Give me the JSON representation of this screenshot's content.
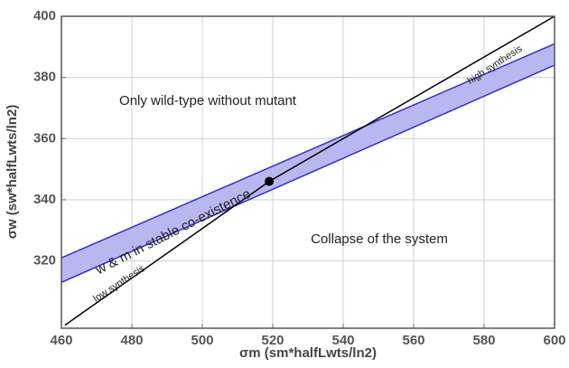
{
  "chart_data": {
    "type": "line",
    "x_label": "σm (sm*halfLwts/ln2)",
    "y_label": "σw (sw*halfLwts/ln2)",
    "xlim": [
      460,
      600
    ],
    "xticks": [
      460,
      480,
      500,
      520,
      540,
      560,
      580,
      600
    ],
    "ylim": [
      298,
      400
    ],
    "yticks": [
      320,
      340,
      360,
      380,
      400
    ],
    "grid": true,
    "band": {
      "color": "#3030cc",
      "fill": "#b8b8f0",
      "x": [
        460,
        600
      ],
      "upper": [
        321,
        391
      ],
      "lower": [
        313,
        384
      ]
    },
    "line": {
      "color": "#000000",
      "x": [
        461,
        519,
        600
      ],
      "values": [
        299,
        346,
        400
      ]
    },
    "point": {
      "x": 519,
      "y": 346,
      "color": "#000000"
    },
    "annotations": [
      "Only wild-type without mutant",
      "Collapse of the system",
      "w & m in stable co-existence",
      "low synthesis",
      "high synthesis"
    ]
  }
}
